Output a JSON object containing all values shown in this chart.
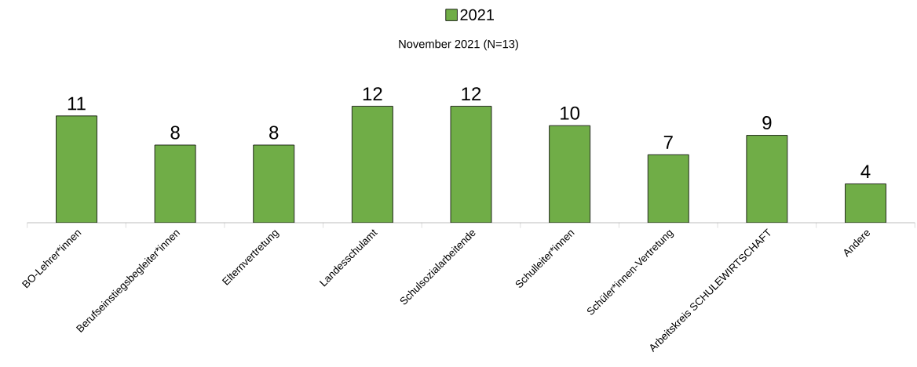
{
  "chart_data": {
    "type": "bar",
    "subtitle": "November 2021 (N=13)",
    "categories": [
      "BO-Lehrer*innen",
      "Berufseinstiegsbegleiter*innen",
      "Elternvertretung",
      "Landesschulamt",
      "Schulsozialarbeitende",
      "Schulleiter*innen",
      "Schüler*innen-Vertretung",
      "Arbeitskreis SCHULEWIRTSCHAFT",
      "Andere"
    ],
    "series": [
      {
        "name": "2021",
        "color": "#70ad47",
        "values": [
          11,
          8,
          8,
          12,
          12,
          10,
          7,
          9,
          4
        ]
      }
    ],
    "data_labels": true,
    "legend": "top"
  }
}
